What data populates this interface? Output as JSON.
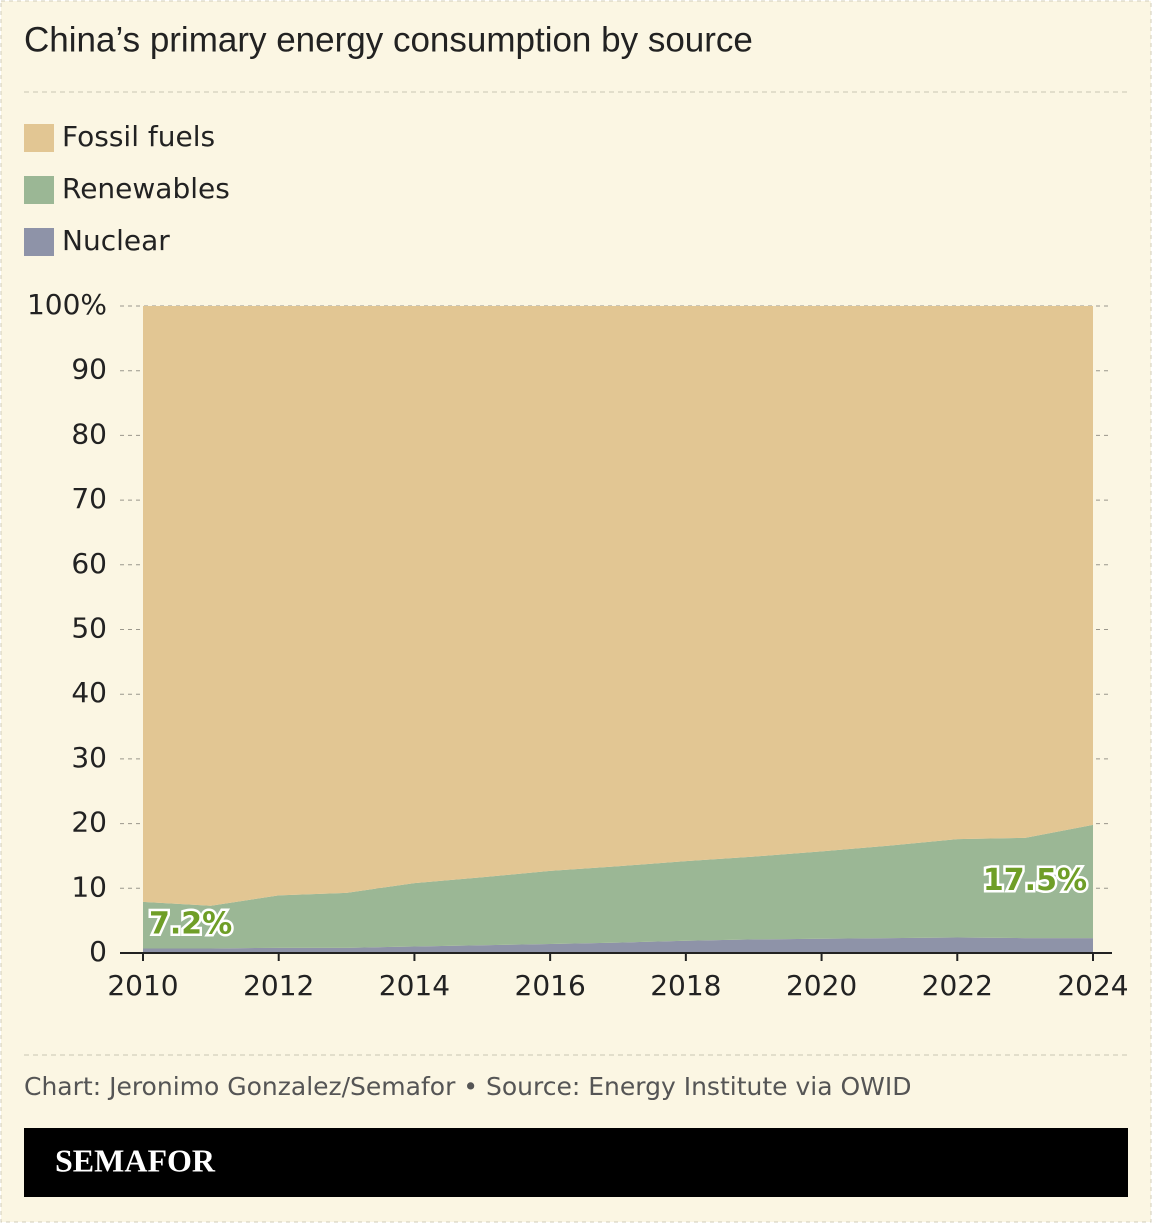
{
  "chart_data": {
    "type": "stacked-area",
    "title": "China’s primary energy consumption by source",
    "x": [
      2010,
      2011,
      2012,
      2013,
      2014,
      2015,
      2016,
      2017,
      2018,
      2019,
      2020,
      2021,
      2022,
      2023,
      2024
    ],
    "series": [
      {
        "name": "Fossil fuels",
        "color": "#e2c693",
        "values": [
          92.1,
          92.7,
          91.1,
          90.7,
          89.2,
          88.3,
          87.3,
          86.6,
          85.8,
          85.1,
          84.3,
          83.4,
          82.4,
          82.2,
          80.2
        ]
      },
      {
        "name": "Renewables",
        "color": "#9bb795",
        "values": [
          7.2,
          6.6,
          8.1,
          8.5,
          9.8,
          10.5,
          11.3,
          11.8,
          12.3,
          12.8,
          13.5,
          14.3,
          15.2,
          15.5,
          17.5
        ],
        "value_labels": [
          "7.2%",
          null,
          null,
          null,
          null,
          null,
          null,
          null,
          null,
          null,
          null,
          null,
          null,
          null,
          "17.5%"
        ]
      },
      {
        "name": "Nuclear",
        "color": "#8e93a8",
        "values": [
          0.7,
          0.7,
          0.8,
          0.8,
          1.0,
          1.2,
          1.4,
          1.6,
          1.9,
          2.1,
          2.2,
          2.3,
          2.4,
          2.3,
          2.3
        ]
      }
    ],
    "xlim": [
      2010,
      2024
    ],
    "xticks": [
      2010,
      2012,
      2014,
      2016,
      2018,
      2020,
      2022,
      2024
    ],
    "ylim": [
      0,
      100
    ],
    "yticks": [
      0,
      10,
      20,
      30,
      40,
      50,
      60,
      70,
      80,
      90,
      {
        "value": 100,
        "label": "100%"
      }
    ],
    "grid": true,
    "source": "Chart: Jeronimo Gonzalez/Semafor • Source: Energy Institute via OWID",
    "brand": "SEMAFOR"
  }
}
